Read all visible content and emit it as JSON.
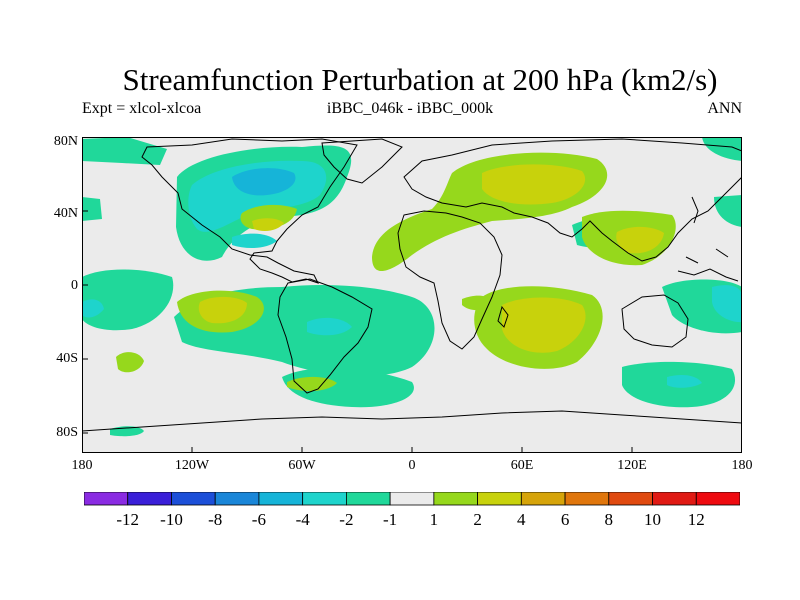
{
  "header": {
    "title": "Streamfunction Perturbation at 200 hPa (km2/s)",
    "left": "Expt = xlcol-xlcoa",
    "center": "iBBC_046k - iBBC_000k",
    "right": "ANN"
  },
  "axes": {
    "lat_labels": [
      "80N",
      "40N",
      "0",
      "40S",
      "80S"
    ],
    "lon_labels": [
      "180",
      "120W",
      "60W",
      "0",
      "60E",
      "120E",
      "180"
    ]
  },
  "colorbar": {
    "labels": [
      "-12",
      "-10",
      "-8",
      "-6",
      "-4",
      "-2",
      "-1",
      "1",
      "2",
      "4",
      "6",
      "8",
      "10",
      "12"
    ],
    "colors": [
      "#8a2be2",
      "#3a1fd8",
      "#1c4fd8",
      "#1a86d8",
      "#16b4d8",
      "#1ed4cc",
      "#20d89a",
      "#ebebeb",
      "#96d81c",
      "#c8d20c",
      "#d6a40a",
      "#e0760c",
      "#e04a10",
      "#e01a14",
      "#ee0a10"
    ]
  },
  "fill": {
    "background": "#ebebeb",
    "level_neg1": "#20d89a",
    "level_neg2": "#1ed4cc",
    "level_neg4": "#16b4d8",
    "level_pos1": "#96d81c",
    "level_pos2": "#c8d20c"
  }
}
